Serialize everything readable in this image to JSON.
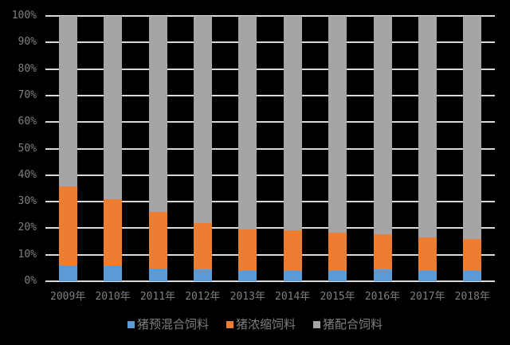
{
  "chart_data": {
    "type": "bar",
    "stacked": true,
    "percent_stacked": true,
    "title": "",
    "xlabel": "",
    "ylabel": "",
    "ylim": [
      0,
      100
    ],
    "y_ticks": [
      "0%",
      "10%",
      "20%",
      "30%",
      "40%",
      "50%",
      "60%",
      "70%",
      "80%",
      "90%",
      "100%"
    ],
    "grid": true,
    "legend_position": "bottom",
    "categories": [
      "2009年",
      "2010年",
      "2011年",
      "2012年",
      "2013年",
      "2014年",
      "2015年",
      "2016年",
      "2017年",
      "2018年"
    ],
    "series": [
      {
        "name": "猪预混合饲料",
        "color": "#5b9bd5",
        "values": [
          6.0,
          5.7,
          4.9,
          4.5,
          4.0,
          4.0,
          4.0,
          4.5,
          4.0,
          4.0
        ]
      },
      {
        "name": "猪浓缩饲料",
        "color": "#ed7d31",
        "values": [
          29.7,
          25.2,
          21.2,
          17.5,
          15.6,
          15.2,
          14.4,
          13.2,
          12.5,
          12.0
        ]
      },
      {
        "name": "猪配合饲料",
        "color": "#a5a5a5",
        "values": [
          64.3,
          69.1,
          73.9,
          78.0,
          80.4,
          80.8,
          81.6,
          82.3,
          83.5,
          84.0
        ]
      }
    ]
  },
  "legend": {
    "items": [
      {
        "label": "猪预混合饲料",
        "color": "#5b9bd5"
      },
      {
        "label": "猪浓缩饲料",
        "color": "#ed7d31"
      },
      {
        "label": "猪配合饲料",
        "color": "#a5a5a5"
      }
    ]
  }
}
